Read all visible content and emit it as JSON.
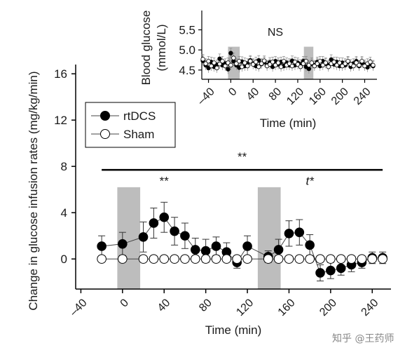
{
  "chart_data": [
    {
      "id": "main",
      "type": "line",
      "ylabel": "Change in glucose infusion rates (mg/kg/min)",
      "xlabel": "Time (min)",
      "xlim": [
        -45,
        258
      ],
      "ylim": [
        -2.6,
        16.8
      ],
      "xticks": [
        -40,
        0,
        40,
        80,
        120,
        160,
        200,
        240
      ],
      "yticks": [
        0,
        4,
        8,
        12,
        16
      ],
      "shaded_regions": [
        [
          -5,
          17
        ],
        [
          130,
          152
        ]
      ],
      "series": [
        {
          "name": "rtDCS",
          "marker": "filled-circle",
          "x": [
            -20,
            0,
            20,
            30,
            40,
            50,
            60,
            70,
            80,
            90,
            100,
            110,
            120,
            140,
            150,
            160,
            170,
            180,
            190,
            200,
            210,
            220,
            230,
            240,
            250
          ],
          "y": [
            1.1,
            1.3,
            1.9,
            3.1,
            3.6,
            2.4,
            2.0,
            0.8,
            0.7,
            1.1,
            0.6,
            -0.3,
            1.1,
            0.2,
            0.8,
            2.2,
            2.3,
            1.2,
            -1.2,
            -1.0,
            -0.8,
            -0.5,
            -0.3,
            0.1,
            0.1
          ],
          "err": [
            0.9,
            1.0,
            1.3,
            1.3,
            1.3,
            1.2,
            1.1,
            1.0,
            1.0,
            0.8,
            0.8,
            0.5,
            0.9,
            0.5,
            0.9,
            1.1,
            1.1,
            0.9,
            0.7,
            0.7,
            0.6,
            0.6,
            0.5,
            0.5,
            0.5
          ]
        },
        {
          "name": "Sham",
          "marker": "open-circle",
          "x": [
            -20,
            0,
            20,
            30,
            40,
            50,
            60,
            70,
            80,
            90,
            100,
            110,
            120,
            140,
            150,
            160,
            170,
            180,
            190,
            200,
            210,
            220,
            230,
            240,
            250
          ],
          "y": [
            0,
            0,
            0,
            0,
            0,
            0,
            0,
            0,
            0,
            0,
            0,
            0,
            0,
            0,
            0,
            0,
            0,
            0,
            0,
            0,
            0,
            0,
            0,
            0,
            0
          ],
          "err": [
            0.3,
            0.3,
            0.3,
            0.3,
            0.3,
            0.3,
            0.3,
            0.3,
            0.3,
            0.3,
            0.3,
            0.3,
            0.3,
            0.3,
            0.3,
            0.3,
            0.3,
            0.3,
            0.3,
            0.3,
            0.3,
            0.3,
            0.3,
            0.3,
            0.3
          ]
        }
      ],
      "annotations": [
        {
          "text": "**",
          "x": 115,
          "y": 8.5
        },
        {
          "text": "**",
          "x": 40,
          "y": 6.4
        },
        {
          "text": "t*",
          "x": 180,
          "y": 6.4
        }
      ],
      "bracket": {
        "x_start": -20,
        "x_end": 250,
        "y": 7.7
      },
      "legend": {
        "placement": "top-left",
        "entries": [
          "rtDCS",
          "Sham"
        ]
      }
    },
    {
      "id": "inset",
      "type": "line",
      "ylabel_lines": [
        "Blood glucose",
        "(mmol/L)"
      ],
      "xlabel": "Time (min)",
      "xlim": [
        -52,
        262
      ],
      "ylim": [
        4.27,
        5.98
      ],
      "xticks": [
        -40,
        0,
        40,
        80,
        120,
        160,
        200,
        240
      ],
      "yticks": [
        4.5,
        5.0,
        5.5
      ],
      "ytick_labels": [
        "4.5",
        "5.0",
        "5.5"
      ],
      "shaded_regions": [
        [
          -5,
          16
        ],
        [
          131,
          148
        ]
      ],
      "annotation": "NS",
      "series": [
        {
          "name": "rtDCS",
          "marker": "filled-circle",
          "x": [
            -50,
            -45,
            -40,
            -35,
            -30,
            -25,
            -20,
            -15,
            -10,
            -5,
            0,
            5,
            10,
            15,
            20,
            25,
            30,
            35,
            40,
            45,
            50,
            55,
            60,
            65,
            70,
            75,
            80,
            85,
            90,
            95,
            100,
            105,
            110,
            115,
            120,
            125,
            130,
            135,
            140,
            145,
            150,
            155,
            160,
            165,
            170,
            175,
            180,
            185,
            190,
            195,
            200,
            205,
            210,
            215,
            220,
            225,
            230,
            235,
            240,
            245,
            250,
            255
          ],
          "y": [
            4.73,
            4.62,
            4.55,
            4.7,
            4.58,
            4.63,
            4.78,
            4.62,
            4.66,
            4.52,
            4.92,
            4.72,
            4.62,
            4.56,
            4.71,
            4.6,
            4.66,
            4.74,
            4.66,
            4.6,
            4.74,
            4.65,
            4.7,
            4.62,
            4.69,
            4.58,
            4.72,
            4.64,
            4.7,
            4.6,
            4.68,
            4.62,
            4.73,
            4.62,
            4.68,
            4.64,
            4.72,
            4.58,
            4.53,
            4.65,
            4.62,
            4.7,
            4.6,
            4.72,
            4.66,
            4.62,
            4.76,
            4.64,
            4.7,
            4.6,
            4.68,
            4.62,
            4.7,
            4.58,
            4.66,
            4.72,
            4.6,
            4.68,
            4.63,
            4.57,
            4.65,
            4.6
          ],
          "err": 0.12
        },
        {
          "name": "Sham",
          "marker": "open-circle",
          "x": [
            -50,
            -45,
            -40,
            -35,
            -30,
            -25,
            -20,
            -15,
            -10,
            -5,
            0,
            5,
            10,
            15,
            20,
            25,
            30,
            35,
            40,
            45,
            50,
            55,
            60,
            65,
            70,
            75,
            80,
            85,
            90,
            95,
            100,
            105,
            110,
            115,
            120,
            125,
            130,
            135,
            140,
            145,
            150,
            155,
            160,
            165,
            170,
            175,
            180,
            185,
            190,
            195,
            200,
            205,
            210,
            215,
            220,
            225,
            230,
            235,
            240,
            245,
            250,
            255
          ],
          "y": [
            4.77,
            4.66,
            4.72,
            4.6,
            4.68,
            4.55,
            4.65,
            4.72,
            4.6,
            4.68,
            4.62,
            4.8,
            4.66,
            4.72,
            4.58,
            4.68,
            4.6,
            4.72,
            4.64,
            4.7,
            4.58,
            4.66,
            4.73,
            4.6,
            4.64,
            4.7,
            4.62,
            4.68,
            4.58,
            4.72,
            4.62,
            4.66,
            4.6,
            4.7,
            4.64,
            4.58,
            4.66,
            4.72,
            4.62,
            4.68,
            4.6,
            4.66,
            4.72,
            4.62,
            4.68,
            4.58,
            4.66,
            4.7,
            4.62,
            4.68,
            4.6,
            4.66,
            4.72,
            4.64,
            4.6,
            4.68,
            4.62,
            4.72,
            4.6,
            4.66,
            4.7,
            4.62
          ],
          "err": 0.12
        }
      ]
    }
  ],
  "watermark": "知乎 @王药师"
}
